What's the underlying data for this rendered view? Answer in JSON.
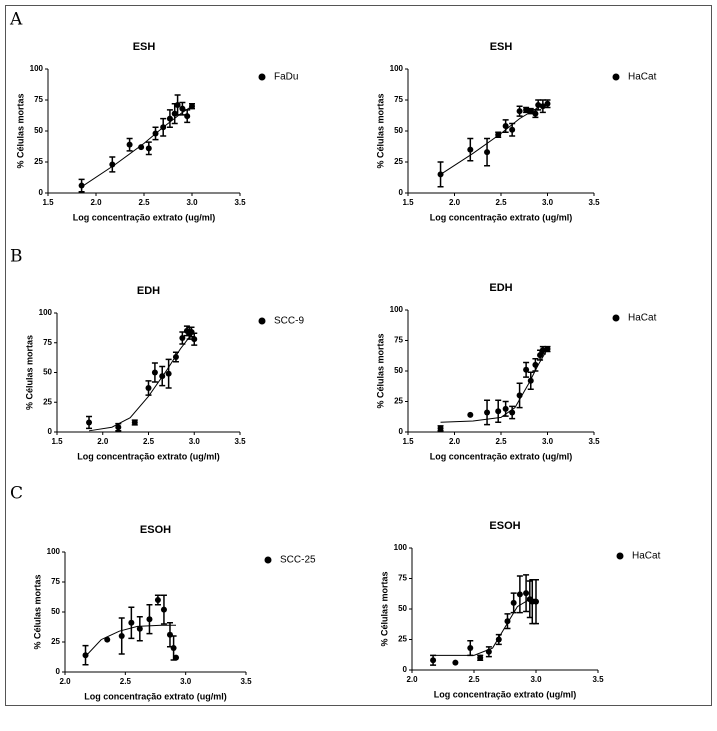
{
  "panels": [
    "A",
    "B",
    "C"
  ],
  "chart_data": [
    {
      "type": "scatter",
      "title": "ESH",
      "xlabel": "Log concentração extrato (ug/ml)",
      "ylabel": "% Células mortas",
      "xlim": [
        1.5,
        3.5
      ],
      "xticks": [
        1.5,
        {
          "value": 2,
          "label": "2.0"
        },
        2.5,
        {
          "value": 3,
          "label": "3.0"
        },
        3.5
      ],
      "ylim": [
        0,
        100
      ],
      "yticks": [
        0,
        25,
        50,
        75,
        100
      ],
      "series": [
        {
          "name": "FaDu",
          "color": "#000000",
          "x": [
            1.85,
            2.17,
            2.35,
            2.47,
            2.55,
            2.62,
            2.7,
            2.77,
            2.82,
            2.85,
            2.9,
            2.95,
            3.0
          ],
          "values": [
            6,
            23,
            39,
            37,
            36,
            48,
            53,
            60,
            64,
            71,
            68,
            62,
            70
          ],
          "errors": [
            5,
            6,
            5,
            0,
            5,
            5,
            7,
            7,
            8,
            8,
            5,
            5,
            2
          ]
        }
      ],
      "fit": {
        "x": [
          1.85,
          2.2,
          2.5,
          2.7,
          2.9,
          3.0
        ],
        "values": [
          5,
          23,
          40,
          53,
          65,
          70
        ]
      }
    },
    {
      "type": "scatter",
      "title": "ESH",
      "xlabel": "Log concentração extrato (ug/ml)",
      "ylabel": "% Células mortas",
      "xlim": [
        1.5,
        3.5
      ],
      "xticks": [
        1.5,
        {
          "value": 2,
          "label": "2.0"
        },
        2.5,
        {
          "value": 3,
          "label": "3.0"
        },
        3.5
      ],
      "ylim": [
        0,
        100
      ],
      "yticks": [
        0,
        25,
        50,
        75,
        100
      ],
      "series": [
        {
          "name": "HaCat",
          "color": "#000000",
          "x": [
            1.85,
            2.17,
            2.35,
            2.47,
            2.55,
            2.62,
            2.7,
            2.77,
            2.82,
            2.87,
            2.9,
            2.95,
            3.0
          ],
          "values": [
            15,
            35,
            33,
            47,
            54,
            51,
            66,
            67,
            66,
            64,
            71,
            70,
            72
          ],
          "errors": [
            10,
            9,
            11,
            2,
            5,
            5,
            4,
            2,
            2,
            3,
            4,
            5,
            3
          ]
        }
      ],
      "fit": {
        "x": [
          1.85,
          2.2,
          2.5,
          2.7,
          2.9,
          3.0
        ],
        "values": [
          15,
          32,
          48,
          60,
          69,
          72
        ]
      }
    },
    {
      "type": "scatter",
      "title": "EDH",
      "xlabel": "Log concentração extrato (ug/ml)",
      "ylabel": "% Células mortas",
      "xlim": [
        1.5,
        3.5
      ],
      "xticks": [
        1.5,
        {
          "value": 2,
          "label": "2.0"
        },
        2.5,
        {
          "value": 3,
          "label": "3.0"
        },
        3.5
      ],
      "ylim": [
        0,
        100
      ],
      "yticks": [
        0,
        25,
        50,
        75,
        100
      ],
      "series": [
        {
          "name": "SCC-9",
          "color": "#000000",
          "x": [
            1.85,
            2.17,
            2.35,
            2.5,
            2.57,
            2.65,
            2.72,
            2.8,
            2.87,
            2.92,
            2.95,
            2.97,
            3.0
          ],
          "values": [
            8,
            4,
            8,
            37,
            50,
            47,
            49,
            63,
            79,
            85,
            83,
            84,
            78
          ],
          "errors": [
            5,
            3,
            2,
            6,
            8,
            8,
            12,
            4,
            5,
            4,
            5,
            4,
            5
          ]
        }
      ],
      "fit": {
        "x": [
          1.85,
          2.1,
          2.3,
          2.5,
          2.7,
          2.85,
          3.0
        ],
        "values": [
          1,
          4,
          12,
          30,
          52,
          70,
          85
        ]
      }
    },
    {
      "type": "scatter",
      "title": "EDH",
      "xlabel": "Log concentração extrato (ug/ml)",
      "ylabel": "% Células mortas",
      "xlim": [
        1.5,
        3.5
      ],
      "xticks": [
        1.5,
        {
          "value": 2,
          "label": "2.0"
        },
        2.5,
        {
          "value": 3,
          "label": "3.0"
        },
        3.5
      ],
      "ylim": [
        0,
        100
      ],
      "yticks": [
        0,
        25,
        50,
        75,
        100
      ],
      "series": [
        {
          "name": "HaCat",
          "color": "#000000",
          "x": [
            1.85,
            2.17,
            2.35,
            2.47,
            2.55,
            2.62,
            2.7,
            2.77,
            2.82,
            2.87,
            2.92,
            2.95,
            3.0
          ],
          "values": [
            3,
            14,
            16,
            17,
            19,
            16,
            30,
            51,
            42,
            55,
            63,
            67,
            68
          ],
          "errors": [
            2,
            0,
            10,
            9,
            6,
            5,
            10,
            6,
            7,
            5,
            4,
            3,
            2
          ]
        }
      ],
      "fit": {
        "x": [
          1.85,
          2.2,
          2.5,
          2.65,
          2.8,
          2.9,
          3.0
        ],
        "values": [
          8,
          9,
          12,
          20,
          40,
          55,
          68
        ]
      }
    },
    {
      "type": "scatter",
      "title": "ESOH",
      "xlabel": "Log concentração extrato (ug/ml)",
      "ylabel": "% Células mortas",
      "xlim": [
        2,
        3.5
      ],
      "xticks": [
        {
          "value": 2,
          "label": "2.0"
        },
        2.5,
        {
          "value": 3,
          "label": "3.0"
        },
        3.5
      ],
      "ylim": [
        0,
        100
      ],
      "yticks": [
        0,
        25,
        50,
        75,
        100
      ],
      "series": [
        {
          "name": "SCC-25",
          "color": "#000000",
          "x": [
            2.17,
            2.35,
            2.47,
            2.55,
            2.62,
            2.7,
            2.77,
            2.82,
            2.87,
            2.9,
            2.92
          ],
          "values": [
            14,
            27,
            30,
            41,
            36,
            44,
            60,
            52,
            31,
            20,
            12
          ],
          "errors": [
            8,
            0,
            15,
            13,
            10,
            12,
            4,
            12,
            10,
            10,
            0
          ]
        }
      ],
      "fit": {
        "x": [
          2.17,
          2.3,
          2.45,
          2.6,
          2.8,
          2.92
        ],
        "values": [
          13,
          27,
          34,
          38,
          39,
          39
        ]
      }
    },
    {
      "type": "scatter",
      "title": "ESOH",
      "xlabel": "Log concentração extrato (ug/ml)",
      "ylabel": "% Células mortas",
      "xlim": [
        2,
        3.5
      ],
      "xticks": [
        {
          "value": 2,
          "label": "2.0"
        },
        2.5,
        {
          "value": 3,
          "label": "3.0"
        },
        3.5
      ],
      "ylim": [
        0,
        100
      ],
      "yticks": [
        0,
        25,
        50,
        75,
        100
      ],
      "series": [
        {
          "name": "HaCat",
          "color": "#000000",
          "x": [
            2.17,
            2.35,
            2.47,
            2.55,
            2.62,
            2.7,
            2.77,
            2.82,
            2.87,
            2.92,
            2.95,
            2.97,
            3.0
          ],
          "values": [
            8,
            6,
            18,
            10,
            15,
            25,
            40,
            55,
            62,
            63,
            58,
            56,
            56
          ],
          "errors": [
            4,
            0,
            6,
            2,
            4,
            4,
            6,
            8,
            15,
            15,
            15,
            18,
            18
          ]
        }
      ],
      "fit": {
        "x": [
          2.17,
          2.5,
          2.65,
          2.75,
          2.85,
          2.95,
          3.0
        ],
        "values": [
          12,
          12,
          18,
          35,
          52,
          58,
          58
        ]
      }
    }
  ]
}
